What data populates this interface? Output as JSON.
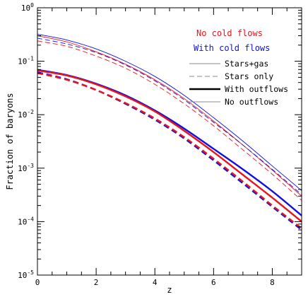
{
  "chart_data": {
    "type": "line",
    "xlabel": "z",
    "ylabel": "Fraction of baryons",
    "xlim": [
      0,
      9
    ],
    "ylim": [
      1e-05,
      1
    ],
    "yscale": "log",
    "x_ticks": [
      "0",
      "2",
      "4",
      "6",
      "8"
    ],
    "y_ticks": [
      {
        "base": "10",
        "exp": "-5",
        "value": 1e-05
      },
      {
        "base": "10",
        "exp": "-4",
        "value": 0.0001
      },
      {
        "base": "10",
        "exp": "-3",
        "value": 0.001
      },
      {
        "base": "10",
        "exp": "-2",
        "value": 0.01
      },
      {
        "base": "10",
        "exp": "-1",
        "value": 0.1
      },
      {
        "base": "10",
        "exp": "0",
        "value": 1
      }
    ],
    "legend": {
      "placement": "top-right",
      "headers": [
        {
          "label": "No cold flows",
          "color": "#e8141e"
        },
        {
          "label": "With cold flows",
          "color": "#1010e0"
        }
      ],
      "styles": [
        {
          "label": "Stars+gas",
          "dash": "solid",
          "weight": "thin"
        },
        {
          "label": "Stars only",
          "dash": "dashed",
          "weight": "thin"
        },
        {
          "label": "With outflows",
          "dash": "solid",
          "weight": "thick"
        },
        {
          "label": "No outflows",
          "dash": "solid",
          "weight": "thin"
        }
      ]
    },
    "series": [
      {
        "color": "#1010e0",
        "dash": "solid",
        "weight": "thin",
        "x": [
          0,
          1,
          2,
          3,
          4,
          5,
          6,
          7,
          8,
          9
        ],
        "y": [
          0.32,
          0.25,
          0.17,
          0.1,
          0.052,
          0.023,
          0.0088,
          0.0032,
          0.0011,
          0.00038
        ]
      },
      {
        "color": "#e8141e",
        "dash": "solid",
        "weight": "thin",
        "x": [
          0,
          1,
          2,
          3,
          4,
          5,
          6,
          7,
          8,
          9
        ],
        "y": [
          0.3,
          0.23,
          0.15,
          0.088,
          0.045,
          0.02,
          0.0076,
          0.0027,
          0.00092,
          0.0003
        ]
      },
      {
        "color": "#1010e0",
        "dash": "dashed",
        "weight": "thin",
        "x": [
          0,
          1,
          2,
          3,
          4,
          5,
          6,
          7,
          8,
          9
        ],
        "y": [
          0.27,
          0.21,
          0.145,
          0.085,
          0.043,
          0.019,
          0.0072,
          0.0027,
          0.00095,
          0.00032
        ]
      },
      {
        "color": "#e8141e",
        "dash": "dashed",
        "weight": "thin",
        "x": [
          0,
          1,
          2,
          3,
          4,
          5,
          6,
          7,
          8,
          9
        ],
        "y": [
          0.24,
          0.19,
          0.125,
          0.074,
          0.037,
          0.016,
          0.0062,
          0.0022,
          0.00077,
          0.00025
        ]
      },
      {
        "color": "#1010e0",
        "dash": "solid",
        "weight": "thick",
        "x": [
          0,
          1,
          2,
          3,
          4,
          5,
          6,
          7,
          8,
          9
        ],
        "y": [
          0.069,
          0.055,
          0.038,
          0.023,
          0.012,
          0.0055,
          0.0023,
          0.00095,
          0.00037,
          0.00013
        ]
      },
      {
        "color": "#e8141e",
        "dash": "solid",
        "weight": "thick",
        "x": [
          0,
          1,
          2,
          3,
          4,
          5,
          6,
          7,
          8,
          9
        ],
        "y": [
          0.067,
          0.054,
          0.037,
          0.022,
          0.0115,
          0.005,
          0.002,
          0.00075,
          0.00028,
          0.0001
        ]
      },
      {
        "color": "#1010e0",
        "dash": "dashed",
        "weight": "thick",
        "x": [
          0,
          1,
          2,
          3,
          4,
          5,
          6,
          7,
          8,
          9
        ],
        "y": [
          0.062,
          0.046,
          0.029,
          0.016,
          0.0081,
          0.0036,
          0.0014,
          0.00052,
          0.00019,
          7e-05
        ]
      },
      {
        "color": "#e8141e",
        "dash": "dashed",
        "weight": "thick",
        "x": [
          0,
          1,
          2,
          3,
          4,
          5,
          6,
          7,
          8,
          9
        ],
        "y": [
          0.06,
          0.045,
          0.029,
          0.0165,
          0.0085,
          0.0038,
          0.0015,
          0.00056,
          0.0002,
          7.5e-05
        ]
      }
    ]
  }
}
